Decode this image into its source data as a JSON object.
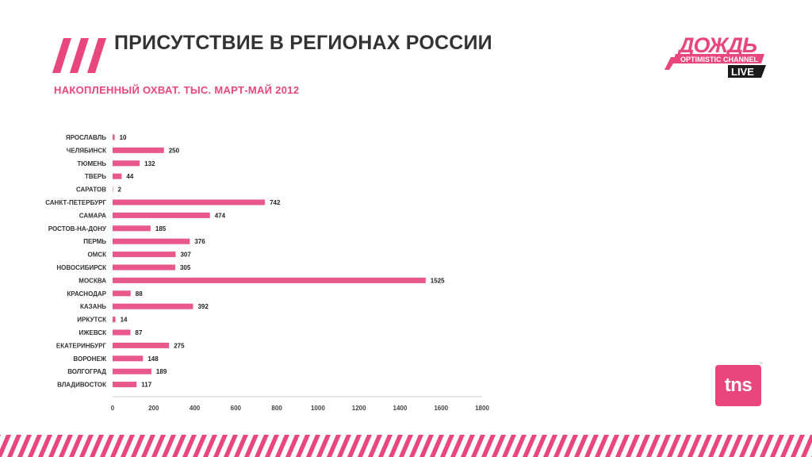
{
  "header": {
    "title": "ПРИСУТСТВИЕ В РЕГИОНАХ РОССИИ",
    "subtitle": "НАКОПЛЕННЫЙ ОХВАТ. ТЫС. МАРТ-МАЙ 2012"
  },
  "logos": {
    "dozhd_name": "ДОЖДЬ",
    "dozhd_tagline": "OPTIMISTIC CHANNEL",
    "dozhd_live": "LIVE",
    "tns": "tns",
    "tns_mark": "™"
  },
  "colors": {
    "accent": "#e8467c",
    "title": "#333333",
    "bar": "#e8588a"
  },
  "chart_data": {
    "type": "bar",
    "orientation": "horizontal",
    "categories": [
      "ЯРОСЛАВЛЬ",
      "ЧЕЛЯБИНСК",
      "ТЮМЕНЬ",
      "ТВЕРЬ",
      "САРАТОВ",
      "САНКТ-ПЕТЕРБУРГ",
      "САМАРА",
      "РОСТОВ-НА-ДОНУ",
      "ПЕРМЬ",
      "ОМСК",
      "НОВОСИБИРСК",
      "МОСКВА",
      "КРАСНОДАР",
      "КАЗАНЬ",
      "ИРКУТСК",
      "ИЖЕВСК",
      "ЕКАТЕРИНБУРГ",
      "ВОРОНЕЖ",
      "ВОЛГОГРАД",
      "ВЛАДИВОСТОК"
    ],
    "values": [
      10,
      250,
      132,
      44,
      2,
      742,
      474,
      185,
      376,
      307,
      305,
      1525,
      88,
      392,
      14,
      87,
      275,
      148,
      189,
      117
    ],
    "xlim": [
      0,
      1800
    ],
    "xticks": [
      0,
      200,
      400,
      600,
      800,
      1000,
      1200,
      1400,
      1600,
      1800
    ],
    "grid": false,
    "data_labels": true
  }
}
